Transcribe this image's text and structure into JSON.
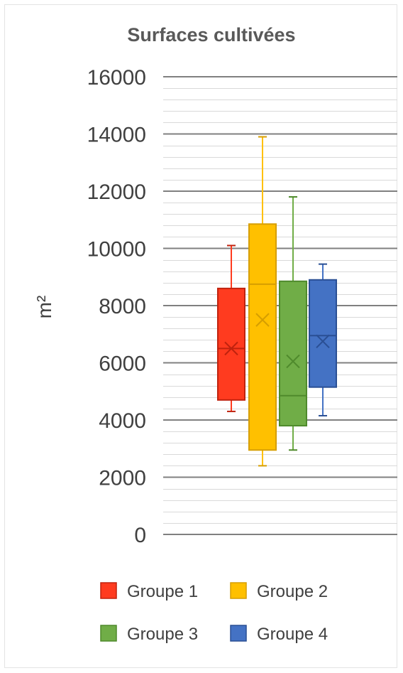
{
  "chart_data": {
    "type": "box",
    "title": "Surfaces cultivées",
    "xlabel": "",
    "ylabel": "m²",
    "ylim": [
      0,
      16000
    ],
    "major_ticks": [
      0,
      2000,
      4000,
      6000,
      8000,
      10000,
      12000,
      14000,
      16000
    ],
    "minor_step": 400,
    "grid": true,
    "legend_position": "bottom",
    "series": [
      {
        "name": "Groupe 1",
        "color": "#ff3b1f",
        "stroke": "#c0220e",
        "min": 4300,
        "q1": 4700,
        "median": 6500,
        "mean": 6500,
        "q3": 8600,
        "max": 10100
      },
      {
        "name": "Groupe 2",
        "color": "#ffc000",
        "stroke": "#d69e00",
        "min": 2400,
        "q1": 2950,
        "median": 8750,
        "mean": 7500,
        "q3": 10850,
        "max": 13900
      },
      {
        "name": "Groupe 3",
        "color": "#70ad47",
        "stroke": "#4f8a2c",
        "min": 2950,
        "q1": 3800,
        "median": 4850,
        "mean": 6050,
        "q3": 8850,
        "max": 11800
      },
      {
        "name": "Groupe 4",
        "color": "#4472c4",
        "stroke": "#2a4f94",
        "min": 4150,
        "q1": 5150,
        "median": 6950,
        "mean": 6750,
        "q3": 8900,
        "max": 9450
      }
    ]
  }
}
